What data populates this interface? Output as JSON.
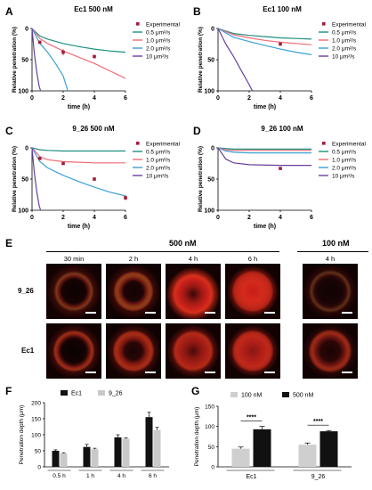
{
  "colors": {
    "s05": "#1f8f7f",
    "s10": "#ef6b76",
    "s20": "#3aa0d6",
    "s100": "#6a3fa0",
    "exp": "#a11b3a",
    "bar_ec1": "#111111",
    "bar_926": "#c9c9c9",
    "bar_100": "#cfcfcf",
    "bar_500": "#111111"
  },
  "common": {
    "ylabel": "Relative penetration (%)",
    "xlabel": "time (h)",
    "yticks": [
      "0",
      "50",
      "100"
    ],
    "xticks": [
      "0",
      "2",
      "4",
      "6"
    ],
    "legend": [
      "Experimental",
      "0.5 μm²/s",
      "1.0 μm²/s",
      "2.0 μm²/s",
      "10 μm²/s"
    ]
  },
  "panels": {
    "A": {
      "letter": "A",
      "title": "Ec1 500 nM"
    },
    "B": {
      "letter": "B",
      "title": "Ec1 100 nM"
    },
    "C": {
      "letter": "C",
      "title": "9_26 500 nM"
    },
    "D": {
      "letter": "D",
      "title": "9_26 100 nM"
    },
    "E": {
      "letter": "E",
      "group_500": "500 nM",
      "group_100": "100 nM",
      "times": [
        "30 min",
        "2 h",
        "4 h",
        "6 h",
        "4 h"
      ],
      "rows": [
        "9_26",
        "Ec1"
      ]
    },
    "F": {
      "letter": "F",
      "ylabel": "Penetration depth (μm)",
      "yticks": [
        "0",
        "50",
        "100",
        "150",
        "200"
      ],
      "legend": [
        "Ec1",
        "9_26"
      ],
      "groups": [
        "0.5 h",
        "1 h",
        "4 h",
        "6 h"
      ]
    },
    "G": {
      "letter": "G",
      "ylabel": "Penetration depth (μm)",
      "yticks": [
        "0",
        "50",
        "100",
        "150"
      ],
      "legend": [
        "100 nM",
        "500 nM"
      ],
      "groups": [
        "Ec1",
        "9_26"
      ],
      "sig": [
        "****",
        "****"
      ]
    }
  },
  "chart_data": [
    {
      "type": "line",
      "panel": "A",
      "title": "Ec1 500 nM",
      "xlabel": "time (h)",
      "ylabel": "Relative penetration (%)",
      "xlim": [
        0,
        6
      ],
      "ylim": [
        0,
        100
      ],
      "y_inverted": true,
      "series": [
        {
          "name": "0.5 μm²/s",
          "x": [
            0,
            0.5,
            1,
            2,
            3,
            4,
            5,
            6
          ],
          "y": [
            0,
            12,
            17,
            24,
            29,
            33,
            36,
            38
          ]
        },
        {
          "name": "1.0 μm²/s",
          "x": [
            0,
            0.5,
            1,
            2,
            3,
            4,
            5,
            6
          ],
          "y": [
            0,
            16,
            24,
            36,
            46,
            56,
            68,
            80
          ]
        },
        {
          "name": "2.0 μm²/s",
          "x": [
            0,
            0.5,
            1,
            1.5,
            2,
            2.2,
            2.3
          ],
          "y": [
            0,
            24,
            38,
            56,
            76,
            92,
            100
          ]
        },
        {
          "name": "10 μm²/s",
          "x": [
            0,
            0.15,
            0.3,
            0.45,
            0.55
          ],
          "y": [
            0,
            40,
            70,
            92,
            100
          ]
        }
      ],
      "experimental": {
        "name": "Experimental",
        "x": [
          0.5,
          2,
          4
        ],
        "y": [
          22,
          38,
          45
        ],
        "err": [
          2,
          5,
          3
        ]
      }
    },
    {
      "type": "line",
      "panel": "B",
      "title": "Ec1 100 nM",
      "xlabel": "time (h)",
      "ylabel": "Relative penetration (%)",
      "xlim": [
        0,
        6
      ],
      "ylim": [
        0,
        100
      ],
      "y_inverted": true,
      "series": [
        {
          "name": "0.5 μm²/s",
          "x": [
            0,
            1,
            2,
            3,
            4,
            5,
            6
          ],
          "y": [
            0,
            8,
            11,
            13,
            15,
            16,
            17
          ]
        },
        {
          "name": "1.0 μm²/s",
          "x": [
            0,
            1,
            2,
            3,
            4,
            5,
            6
          ],
          "y": [
            0,
            10,
            15,
            19,
            22,
            24,
            26
          ]
        },
        {
          "name": "2.0 μm²/s",
          "x": [
            0,
            1,
            2,
            3,
            4,
            5,
            6
          ],
          "y": [
            0,
            14,
            21,
            27,
            33,
            38,
            42
          ]
        },
        {
          "name": "10 μm²/s",
          "x": [
            0,
            0.5,
            1,
            1.5,
            2,
            2.2
          ],
          "y": [
            0,
            25,
            45,
            68,
            90,
            100
          ]
        }
      ],
      "experimental": {
        "name": "Experimental",
        "x": [
          4
        ],
        "y": [
          25
        ],
        "err": [
          1
        ]
      }
    },
    {
      "type": "line",
      "panel": "C",
      "title": "9_26 500 nM",
      "xlabel": "time (h)",
      "ylabel": "Relative penetration (%)",
      "xlim": [
        0,
        6
      ],
      "ylim": [
        0,
        100
      ],
      "y_inverted": true,
      "series": [
        {
          "name": "0.5 μm²/s",
          "x": [
            0,
            0.5,
            1,
            2,
            3,
            4,
            5,
            6
          ],
          "y": [
            0,
            3,
            4,
            5,
            5,
            5,
            5,
            5
          ]
        },
        {
          "name": "1.0 μm²/s",
          "x": [
            0,
            0.5,
            1,
            2,
            3,
            4,
            5,
            6
          ],
          "y": [
            0,
            14,
            19,
            22,
            23,
            24,
            24,
            24
          ]
        },
        {
          "name": "2.0 μm²/s",
          "x": [
            0,
            0.5,
            1,
            2,
            3,
            4,
            5,
            6
          ],
          "y": [
            0,
            22,
            32,
            44,
            54,
            63,
            71,
            77
          ]
        },
        {
          "name": "10 μm²/s",
          "x": [
            0,
            0.15,
            0.3,
            0.45,
            0.55
          ],
          "y": [
            0,
            40,
            70,
            92,
            100
          ]
        }
      ],
      "experimental": {
        "name": "Experimental",
        "x": [
          0.5,
          2,
          4,
          6
        ],
        "y": [
          17,
          25,
          50,
          80
        ],
        "err": [
          1,
          2,
          3,
          4
        ]
      }
    },
    {
      "type": "line",
      "panel": "D",
      "title": "9_26 100 nM",
      "xlabel": "time (h)",
      "ylabel": "Relative penetration (%)",
      "xlim": [
        0,
        6
      ],
      "ylim": [
        0,
        100
      ],
      "y_inverted": true,
      "series": [
        {
          "name": "0.5 μm²/s",
          "x": [
            0,
            0.5,
            1,
            2,
            4,
            6
          ],
          "y": [
            0,
            1,
            2,
            2,
            2,
            2
          ]
        },
        {
          "name": "1.0 μm²/s",
          "x": [
            0,
            0.5,
            1,
            2,
            4,
            6
          ],
          "y": [
            0,
            3,
            4,
            4,
            4,
            4
          ]
        },
        {
          "name": "2.0 μm²/s",
          "x": [
            0,
            0.5,
            1,
            2,
            4,
            6
          ],
          "y": [
            0,
            5,
            7,
            8,
            8,
            8
          ]
        },
        {
          "name": "10 μm²/s",
          "x": [
            0,
            0.5,
            1,
            2,
            4,
            6
          ],
          "y": [
            0,
            18,
            24,
            27,
            28,
            28
          ]
        }
      ],
      "experimental": {
        "name": "Experimental",
        "x": [
          4
        ],
        "y": [
          33
        ],
        "err": [
          1
        ]
      }
    },
    {
      "type": "bar",
      "panel": "F",
      "ylabel": "Penetration depth (μm)",
      "categories": [
        "0.5 h",
        "1 h",
        "4 h",
        "6 h"
      ],
      "ylim": [
        0,
        200
      ],
      "series": [
        {
          "name": "Ec1",
          "values": [
            50,
            62,
            92,
            155
          ],
          "err": [
            3,
            8,
            8,
            15
          ]
        },
        {
          "name": "9_26",
          "values": [
            42,
            55,
            88,
            115
          ],
          "err": [
            2,
            3,
            2,
            8
          ]
        }
      ]
    },
    {
      "type": "bar",
      "panel": "G",
      "ylabel": "Penetration depth (μm)",
      "categories": [
        "Ec1",
        "9_26"
      ],
      "ylim": [
        0,
        150
      ],
      "series": [
        {
          "name": "100 nM",
          "values": [
            45,
            55
          ],
          "err": [
            4,
            4
          ]
        },
        {
          "name": "500 nM",
          "values": [
            93,
            88
          ],
          "err": [
            7,
            2
          ]
        }
      ],
      "significance": [
        "****",
        "****"
      ]
    }
  ]
}
